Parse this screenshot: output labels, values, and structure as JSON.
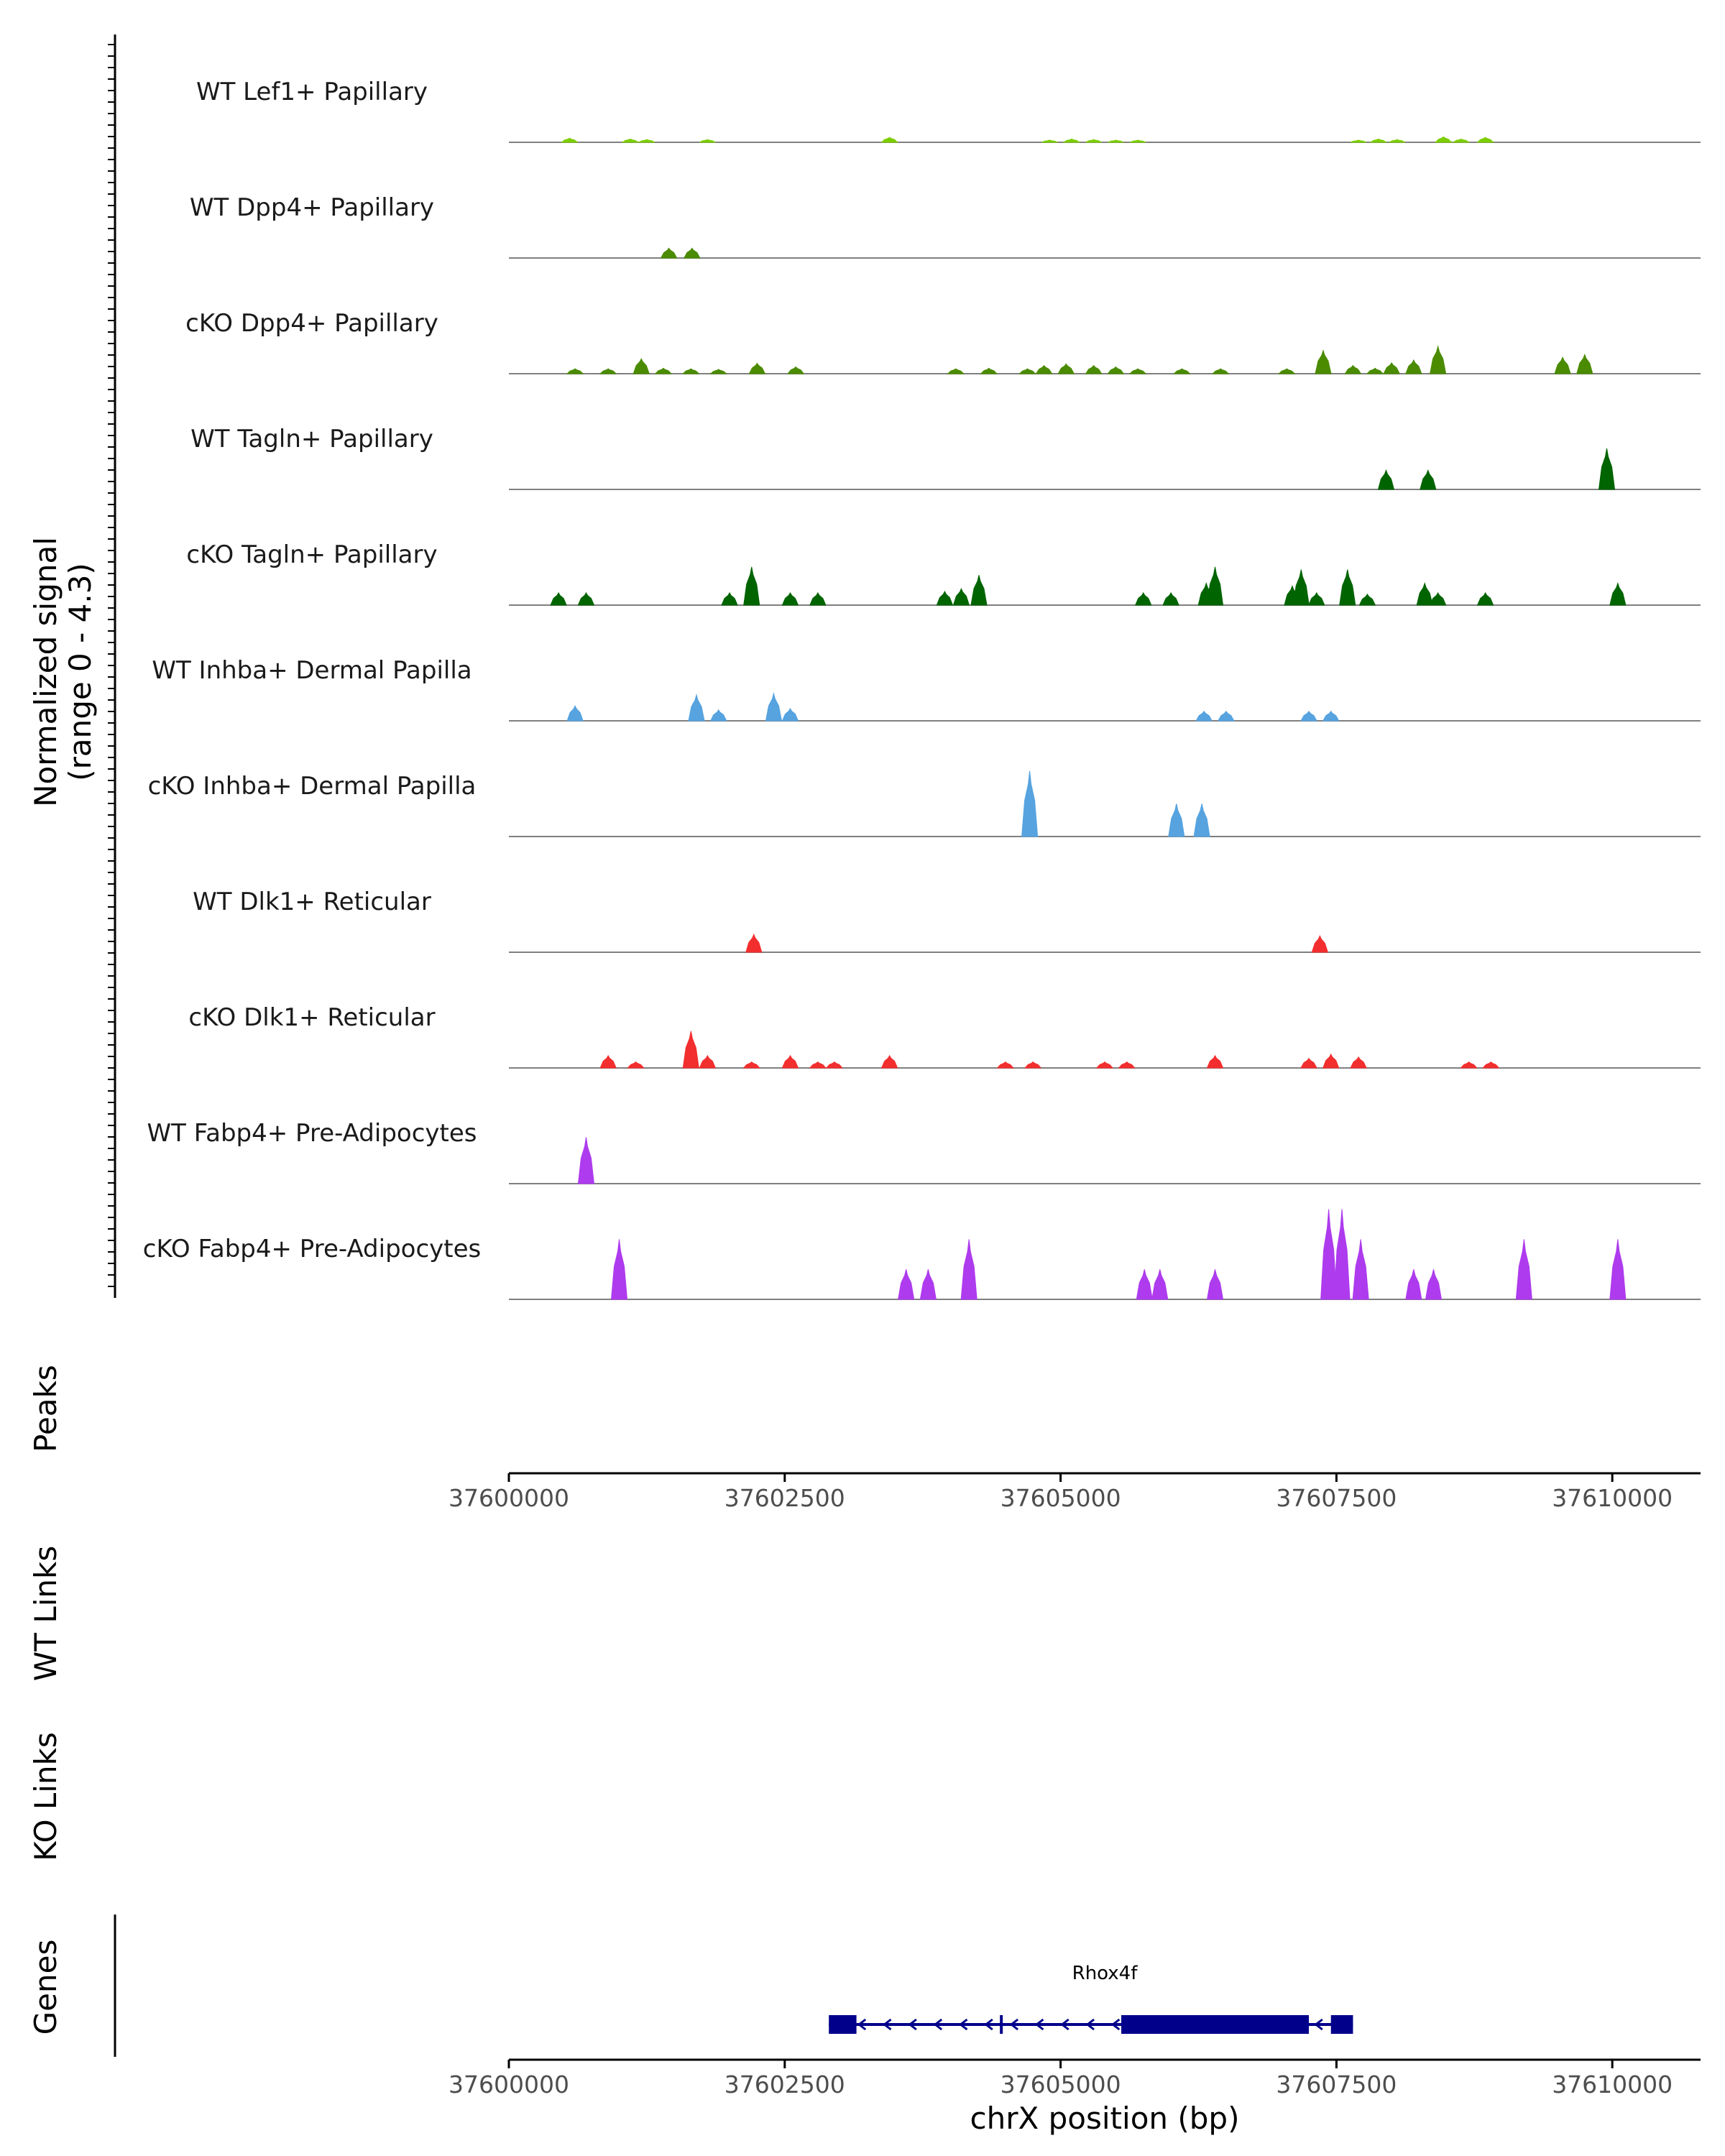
{
  "chart_data": {
    "type": "area",
    "title": "",
    "ylabel_lines": [
      "Normalized signal",
      "(range 0 - 4.3)"
    ],
    "ymax": 4.3,
    "xlabel": "chrX position (bp)",
    "xlim": [
      37600000,
      37610800
    ],
    "x_ticks": [
      37600000,
      37602500,
      37605000,
      37607500,
      37610000
    ],
    "tracks": [
      {
        "label": "WT Lef1+ Papillary",
        "color": "#7CCD00",
        "peaks": [
          [
            37600550,
            0.15
          ],
          [
            37601100,
            0.12
          ],
          [
            37601250,
            0.1
          ],
          [
            37601800,
            0.1
          ],
          [
            37603450,
            0.18
          ],
          [
            37604900,
            0.08
          ],
          [
            37605100,
            0.12
          ],
          [
            37605300,
            0.1
          ],
          [
            37605500,
            0.08
          ],
          [
            37605700,
            0.08
          ],
          [
            37607700,
            0.08
          ],
          [
            37607880,
            0.12
          ],
          [
            37608050,
            0.1
          ],
          [
            37608470,
            0.2
          ],
          [
            37608630,
            0.12
          ],
          [
            37608850,
            0.18
          ]
        ]
      },
      {
        "label": "WT Dpp4+ Papillary",
        "color": "#4A8B00",
        "peaks": [
          [
            37601450,
            0.36
          ],
          [
            37601660,
            0.36
          ]
        ]
      },
      {
        "label": "cKO Dpp4+ Papillary",
        "color": "#4A8B00",
        "peaks": [
          [
            37600600,
            0.18
          ],
          [
            37600900,
            0.18
          ],
          [
            37601200,
            0.55
          ],
          [
            37601400,
            0.2
          ],
          [
            37601650,
            0.18
          ],
          [
            37601900,
            0.16
          ],
          [
            37602250,
            0.38
          ],
          [
            37602600,
            0.25
          ],
          [
            37604050,
            0.18
          ],
          [
            37604350,
            0.2
          ],
          [
            37604700,
            0.18
          ],
          [
            37604850,
            0.3
          ],
          [
            37605050,
            0.36
          ],
          [
            37605300,
            0.3
          ],
          [
            37605500,
            0.25
          ],
          [
            37605700,
            0.18
          ],
          [
            37606100,
            0.18
          ],
          [
            37606450,
            0.18
          ],
          [
            37607050,
            0.18
          ],
          [
            37607380,
            0.85
          ],
          [
            37607650,
            0.3
          ],
          [
            37607850,
            0.2
          ],
          [
            37608000,
            0.4
          ],
          [
            37608200,
            0.5
          ],
          [
            37608420,
            1.0
          ],
          [
            37609550,
            0.6
          ],
          [
            37609750,
            0.7
          ]
        ]
      },
      {
        "label": "WT Tagln+ Papillary",
        "color": "#006400",
        "peaks": [
          [
            37607950,
            0.7
          ],
          [
            37608330,
            0.7
          ],
          [
            37609950,
            1.5
          ]
        ]
      },
      {
        "label": "cKO Tagln+ Papillary",
        "color": "#006400",
        "peaks": [
          [
            37600450,
            0.45
          ],
          [
            37600700,
            0.45
          ],
          [
            37602000,
            0.45
          ],
          [
            37602200,
            1.4
          ],
          [
            37602550,
            0.45
          ],
          [
            37602800,
            0.45
          ],
          [
            37603950,
            0.5
          ],
          [
            37604100,
            0.6
          ],
          [
            37604260,
            1.1
          ],
          [
            37605750,
            0.45
          ],
          [
            37606000,
            0.45
          ],
          [
            37606320,
            0.8
          ],
          [
            37606400,
            1.4
          ],
          [
            37607100,
            0.7
          ],
          [
            37607180,
            1.3
          ],
          [
            37607320,
            0.45
          ],
          [
            37607600,
            1.3
          ],
          [
            37607780,
            0.4
          ],
          [
            37608300,
            0.8
          ],
          [
            37608420,
            0.45
          ],
          [
            37608850,
            0.45
          ],
          [
            37610050,
            0.8
          ]
        ]
      },
      {
        "label": "WT Inhba+ Dermal Papilla",
        "color": "#56A3E0",
        "peaks": [
          [
            37600600,
            0.55
          ],
          [
            37601700,
            0.95
          ],
          [
            37601900,
            0.4
          ],
          [
            37602400,
            1.0
          ],
          [
            37602550,
            0.45
          ],
          [
            37606300,
            0.35
          ],
          [
            37606500,
            0.35
          ],
          [
            37607250,
            0.35
          ],
          [
            37607450,
            0.35
          ]
        ]
      },
      {
        "label": "cKO Inhba+ Dermal Papilla",
        "color": "#56A3E0",
        "peaks": [
          [
            37604720,
            2.4
          ],
          [
            37606050,
            1.2
          ],
          [
            37606280,
            1.2
          ]
        ]
      },
      {
        "label": "WT Dlk1+ Reticular",
        "color": "#F22E2E",
        "peaks": [
          [
            37602220,
            0.65
          ],
          [
            37607350,
            0.6
          ]
        ]
      },
      {
        "label": "cKO Dlk1+ Reticular",
        "color": "#F22E2E",
        "peaks": [
          [
            37600900,
            0.45
          ],
          [
            37601150,
            0.22
          ],
          [
            37601650,
            1.35
          ],
          [
            37601800,
            0.45
          ],
          [
            37602200,
            0.22
          ],
          [
            37602550,
            0.45
          ],
          [
            37602800,
            0.22
          ],
          [
            37602950,
            0.22
          ],
          [
            37603450,
            0.45
          ],
          [
            37604500,
            0.22
          ],
          [
            37604750,
            0.22
          ],
          [
            37605400,
            0.22
          ],
          [
            37605600,
            0.22
          ],
          [
            37606400,
            0.45
          ],
          [
            37607250,
            0.35
          ],
          [
            37607450,
            0.5
          ],
          [
            37607700,
            0.4
          ],
          [
            37608700,
            0.22
          ],
          [
            37608900,
            0.22
          ]
        ]
      },
      {
        "label": "WT Fabp4+ Pre-Adipocytes",
        "color": "#AE3BEE",
        "peaks": [
          [
            37600700,
            1.7
          ]
        ]
      },
      {
        "label": "cKO Fabp4+ Pre-Adipocytes",
        "color": "#AE3BEE",
        "peaks": [
          [
            37601000,
            2.2
          ],
          [
            37603600,
            1.1
          ],
          [
            37603800,
            1.1
          ],
          [
            37604170,
            2.2
          ],
          [
            37605760,
            1.1
          ],
          [
            37605900,
            1.1
          ],
          [
            37606400,
            1.1
          ],
          [
            37607430,
            3.3
          ],
          [
            37607550,
            3.3
          ],
          [
            37607720,
            2.2
          ],
          [
            37608200,
            1.1
          ],
          [
            37608380,
            1.1
          ],
          [
            37609200,
            2.2
          ],
          [
            37610050,
            2.2
          ]
        ]
      }
    ],
    "peaks_track_label": "Peaks",
    "wt_links_label": "WT Links",
    "ko_links_label": "KO Links",
    "genes_label": "Genes",
    "gene": {
      "name": "Rhox4f",
      "start": 37602900,
      "end": 37607650,
      "strand": "-",
      "exons": [
        [
          37602900,
          37603150
        ],
        [
          37604450,
          37604470
        ],
        [
          37605550,
          37607250
        ],
        [
          37607450,
          37607650
        ]
      ],
      "color": "#00008B"
    }
  }
}
